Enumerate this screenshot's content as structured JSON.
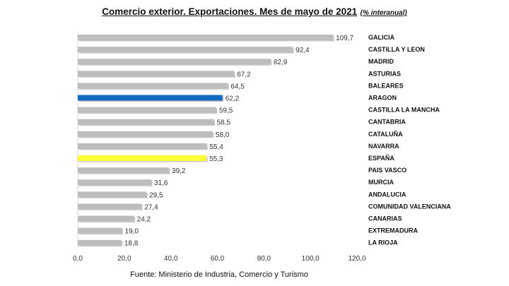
{
  "chart_data": {
    "type": "bar",
    "orientation": "horizontal",
    "title": "Comercio exterior. Exportaciones. Mes de mayo de 2021",
    "subtitle": "(% interanual)",
    "source": "Fuente: Ministerio de Industria, Comercio y Turismo",
    "categories": [
      "GALICIA",
      "CASTILLA Y LEON",
      "MADRID",
      "ASTURIAS",
      "BALEARES",
      "ARAGON",
      "CASTILLA LA MANCHA",
      "CANTABRIA",
      "CATALUÑA",
      "NAVARRA",
      "ESPAÑA",
      "PAIS VASCO",
      "MURCIA",
      "ANDALUCIA",
      "COMUNIDAD VALENCIANA",
      "CANARIAS",
      "EXTREMADURA",
      "LA RIOJA"
    ],
    "values": [
      109.7,
      92.4,
      82.9,
      67.2,
      64.5,
      62.2,
      59.5,
      58.5,
      58.0,
      55.4,
      55.3,
      39.2,
      31.6,
      29.5,
      27.4,
      24.2,
      19.0,
      18.8
    ],
    "value_labels": [
      "109,7",
      "92,4",
      "82,9",
      "67,2",
      "64,5",
      "62,2",
      "59,5",
      "58,5",
      "58,0",
      "55,4",
      "55,3",
      "39,2",
      "31,6",
      "29,5",
      "27,4",
      "24,2",
      "19,0",
      "18,8"
    ],
    "xlim": [
      0,
      120
    ],
    "xticks": [
      0,
      20,
      40,
      60,
      80,
      100,
      120
    ],
    "xtick_labels": [
      "0,0",
      "20,0",
      "40,0",
      "60,0",
      "80,0",
      "100,0",
      "120,0"
    ],
    "grid": false,
    "legend": "none",
    "colors": {
      "default": "#bdbdbd",
      "ARAGON": "#0f6cc0",
      "ESPAÑA": "#ffff33"
    }
  }
}
